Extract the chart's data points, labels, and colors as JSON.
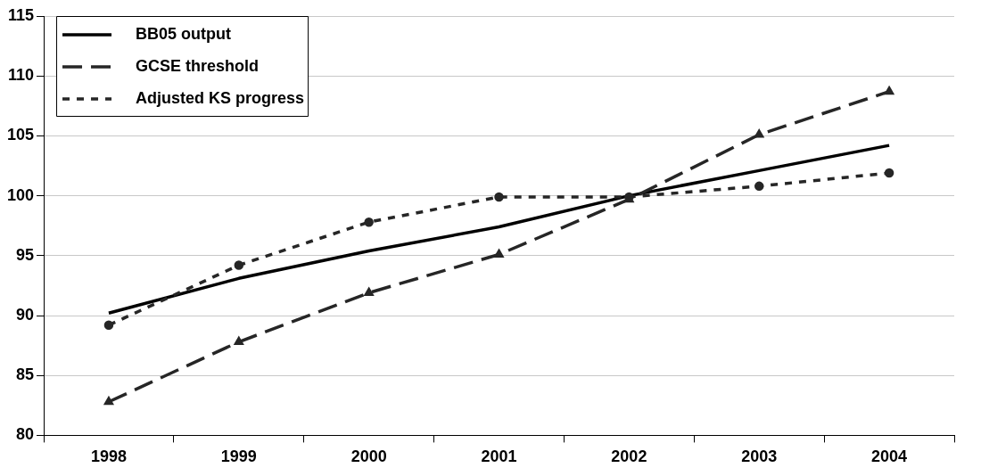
{
  "chart_data": {
    "type": "line",
    "categories": [
      "1998",
      "1999",
      "2000",
      "2001",
      "2002",
      "2003",
      "2004"
    ],
    "series": [
      {
        "name": "BB05 output",
        "color": "#000000",
        "marker": "none",
        "line_style": "solid",
        "values": [
          90.2,
          93.1,
          95.4,
          97.4,
          100,
          102.1,
          104.2
        ]
      },
      {
        "name": "GCSE threshold",
        "color": "#262626",
        "marker": "triangle",
        "line_style": "dashed",
        "values": [
          82.8,
          87.8,
          91.9,
          95.1,
          99.7,
          105.1,
          108.7
        ]
      },
      {
        "name": "Adjusted KS progress",
        "color": "#262626",
        "marker": "circle",
        "line_style": "dotted",
        "values": [
          89.2,
          94.2,
          97.8,
          99.9,
          99.9,
          100.8,
          101.9
        ]
      }
    ],
    "ylim": [
      80,
      115
    ],
    "yticks": [
      80,
      85,
      90,
      95,
      100,
      105,
      110,
      115
    ],
    "grid": "y",
    "legend": "top left"
  }
}
